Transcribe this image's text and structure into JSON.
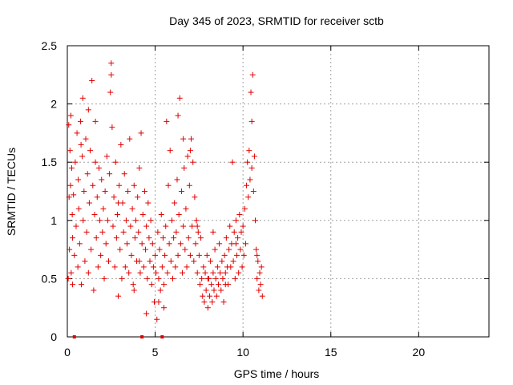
{
  "chart_data": {
    "type": "scatter",
    "title": "Day 345 of 2023, SRMTID for receiver sctb",
    "xlabel": "GPS time / hours",
    "ylabel": "SRMTID / TECUs",
    "xlim": [
      0,
      24
    ],
    "ylim": [
      0,
      2.5
    ],
    "x_ticks": [
      0,
      5,
      10,
      15,
      20
    ],
    "x_tick_labels": [
      "0",
      "5",
      "10",
      "15",
      "20"
    ],
    "y_ticks": [
      0,
      0.5,
      1,
      1.5,
      2,
      2.5
    ],
    "y_tick_labels": [
      "0",
      "0.5",
      "1",
      "1.5",
      "2",
      "2.5"
    ],
    "grid": true,
    "marker": "plus",
    "series_color": "#e00000",
    "zero_markers_x": [
      0.4,
      4.25,
      5.4
    ],
    "points": [
      [
        0.05,
        0.5
      ],
      [
        0.08,
        1.82
      ],
      [
        0.1,
        1.2
      ],
      [
        0.12,
        0.75
      ],
      [
        0.15,
        1.6
      ],
      [
        0.18,
        1.3
      ],
      [
        0.2,
        1.9
      ],
      [
        0.22,
        0.55
      ],
      [
        0.25,
        1.45
      ],
      [
        0.28,
        1.05
      ],
      [
        0.3,
        0.85
      ],
      [
        0.35,
        1.22
      ],
      [
        0.4,
        0.7
      ],
      [
        0.45,
        1.5
      ],
      [
        0.5,
        0.95
      ],
      [
        0.55,
        1.75
      ],
      [
        0.6,
        0.6
      ],
      [
        0.62,
        1.35
      ],
      [
        0.65,
        1.1
      ],
      [
        0.7,
        0.8
      ],
      [
        0.75,
        1.85
      ],
      [
        0.78,
        1.65
      ],
      [
        0.8,
        0.45
      ],
      [
        0.85,
        1.55
      ],
      [
        0.88,
        2.05
      ],
      [
        0.9,
        1.0
      ],
      [
        0.95,
        1.25
      ],
      [
        1.0,
        0.65
      ],
      [
        1.05,
        1.7
      ],
      [
        1.1,
        0.9
      ],
      [
        1.15,
        1.4
      ],
      [
        1.2,
        0.55
      ],
      [
        1.25,
        1.15
      ],
      [
        1.3,
        1.6
      ],
      [
        1.35,
        0.75
      ],
      [
        1.4,
        2.2
      ],
      [
        1.45,
        1.3
      ],
      [
        1.5,
        0.4
      ],
      [
        1.55,
        1.05
      ],
      [
        1.6,
        1.5
      ],
      [
        1.65,
        0.85
      ],
      [
        1.7,
        1.2
      ],
      [
        1.75,
        0.6
      ],
      [
        1.8,
        1.45
      ],
      [
        1.85,
        1.0
      ],
      [
        1.9,
        0.7
      ],
      [
        1.95,
        1.35
      ],
      [
        2.0,
        0.9
      ],
      [
        2.05,
        1.1
      ],
      [
        2.1,
        0.5
      ],
      [
        2.15,
        1.25
      ],
      [
        2.2,
        0.8
      ],
      [
        2.25,
        1.55
      ],
      [
        2.3,
        1.0
      ],
      [
        2.35,
        0.65
      ],
      [
        2.4,
        1.4
      ],
      [
        2.45,
        2.1
      ],
      [
        2.5,
        2.35
      ],
      [
        2.55,
        1.8
      ],
      [
        2.6,
        0.95
      ],
      [
        2.65,
        1.2
      ],
      [
        2.7,
        0.6
      ],
      [
        2.75,
        1.5
      ],
      [
        2.8,
        0.85
      ],
      [
        2.85,
        1.05
      ],
      [
        2.9,
        0.35
      ],
      [
        2.95,
        1.3
      ],
      [
        3.0,
        0.75
      ],
      [
        3.05,
        1.65
      ],
      [
        3.1,
        0.5
      ],
      [
        3.15,
        1.15
      ],
      [
        3.2,
        0.9
      ],
      [
        3.25,
        1.4
      ],
      [
        3.3,
        0.6
      ],
      [
        3.35,
        1.0
      ],
      [
        3.4,
        0.8
      ],
      [
        3.45,
        1.25
      ],
      [
        3.5,
        0.55
      ],
      [
        3.55,
        1.7
      ],
      [
        3.6,
        0.95
      ],
      [
        3.65,
        0.7
      ],
      [
        3.7,
        1.1
      ],
      [
        3.75,
        0.45
      ],
      [
        3.8,
        1.3
      ],
      [
        3.85,
        0.85
      ],
      [
        3.9,
        1.0
      ],
      [
        3.95,
        0.65
      ],
      [
        4.0,
        1.2
      ],
      [
        4.05,
        0.9
      ],
      [
        4.1,
        1.45
      ],
      [
        4.15,
        0.55
      ],
      [
        4.2,
        1.75
      ],
      [
        4.25,
        0.8
      ],
      [
        4.3,
        1.05
      ],
      [
        4.35,
        0.6
      ],
      [
        4.4,
        1.25
      ],
      [
        4.45,
        0.75
      ],
      [
        4.5,
        0.95
      ],
      [
        4.55,
        0.5
      ],
      [
        4.6,
        1.15
      ],
      [
        4.65,
        0.85
      ],
      [
        4.7,
        0.65
      ],
      [
        4.75,
        1.0
      ],
      [
        4.8,
        0.45
      ],
      [
        4.85,
        0.8
      ],
      [
        4.9,
        0.6
      ],
      [
        4.95,
        0.3
      ],
      [
        5.0,
        0.7
      ],
      [
        5.05,
        0.55
      ],
      [
        5.1,
        0.15
      ],
      [
        5.15,
        0.9
      ],
      [
        5.2,
        0.5
      ],
      [
        5.25,
        0.75
      ],
      [
        5.3,
        0.4
      ],
      [
        5.35,
        1.05
      ],
      [
        5.4,
        0.6
      ],
      [
        5.45,
        0.85
      ],
      [
        5.5,
        0.45
      ],
      [
        5.55,
        0.7
      ],
      [
        5.6,
        0.95
      ],
      [
        5.65,
        1.85
      ],
      [
        5.7,
        0.55
      ],
      [
        5.75,
        1.3
      ],
      [
        5.8,
        0.8
      ],
      [
        5.85,
        1.6
      ],
      [
        5.9,
        0.65
      ],
      [
        5.95,
        1.0
      ],
      [
        6.0,
        0.5
      ],
      [
        6.05,
        0.85
      ],
      [
        6.1,
        1.15
      ],
      [
        6.15,
        0.6
      ],
      [
        6.2,
        0.9
      ],
      [
        6.25,
        1.35
      ],
      [
        6.3,
        0.7
      ],
      [
        6.35,
        1.05
      ],
      [
        6.4,
        2.05
      ],
      [
        6.45,
        0.8
      ],
      [
        6.5,
        1.25
      ],
      [
        6.55,
        0.55
      ],
      [
        6.6,
        0.95
      ],
      [
        6.65,
        1.45
      ],
      [
        6.7,
        0.75
      ],
      [
        6.75,
        1.1
      ],
      [
        6.8,
        0.6
      ],
      [
        6.85,
        1.55
      ],
      [
        6.9,
        0.85
      ],
      [
        6.95,
        1.3
      ],
      [
        7.0,
        0.7
      ],
      [
        7.05,
        1.7
      ],
      [
        7.1,
        0.95
      ],
      [
        7.15,
        1.5
      ],
      [
        7.2,
        0.65
      ],
      [
        7.25,
        1.2
      ],
      [
        7.3,
        0.8
      ],
      [
        7.35,
        1.0
      ],
      [
        7.4,
        0.55
      ],
      [
        7.45,
        0.9
      ],
      [
        7.5,
        0.7
      ],
      [
        7.55,
        0.45
      ],
      [
        7.6,
        0.85
      ],
      [
        7.65,
        0.5
      ],
      [
        7.7,
        0.35
      ],
      [
        7.75,
        0.6
      ],
      [
        7.8,
        0.3
      ],
      [
        7.85,
        0.55
      ],
      [
        7.9,
        0.4
      ],
      [
        7.95,
        0.7
      ],
      [
        8.0,
        0.25
      ],
      [
        8.05,
        0.5
      ],
      [
        8.1,
        0.35
      ],
      [
        8.15,
        0.65
      ],
      [
        8.2,
        0.45
      ],
      [
        8.25,
        0.3
      ],
      [
        8.3,
        0.55
      ],
      [
        8.35,
        0.4
      ],
      [
        8.4,
        0.75
      ],
      [
        8.45,
        0.5
      ],
      [
        8.5,
        0.35
      ],
      [
        8.55,
        0.6
      ],
      [
        8.6,
        0.45
      ],
      [
        8.65,
        0.8
      ],
      [
        8.7,
        0.55
      ],
      [
        8.75,
        0.4
      ],
      [
        8.8,
        0.65
      ],
      [
        8.85,
        0.5
      ],
      [
        8.9,
        0.3
      ],
      [
        8.95,
        0.7
      ],
      [
        9.0,
        0.55
      ],
      [
        9.05,
        0.85
      ],
      [
        9.1,
        0.6
      ],
      [
        9.15,
        0.45
      ],
      [
        9.2,
        0.75
      ],
      [
        9.25,
        0.95
      ],
      [
        9.3,
        0.6
      ],
      [
        9.35,
        0.8
      ],
      [
        9.4,
        1.5
      ],
      [
        9.45,
        0.65
      ],
      [
        9.5,
        0.9
      ],
      [
        9.55,
        0.5
      ],
      [
        9.6,
        1.0
      ],
      [
        9.65,
        0.7
      ],
      [
        9.7,
        0.85
      ],
      [
        9.75,
        0.55
      ],
      [
        9.8,
        1.05
      ],
      [
        9.85,
        0.75
      ],
      [
        9.9,
        0.9
      ],
      [
        9.95,
        0.6
      ],
      [
        10.0,
        0.95
      ],
      [
        10.05,
        0.7
      ],
      [
        10.1,
        1.1
      ],
      [
        10.15,
        0.8
      ],
      [
        10.2,
        1.3
      ],
      [
        10.25,
        1.5
      ],
      [
        10.3,
        1.2
      ],
      [
        10.35,
        1.6
      ],
      [
        10.4,
        1.35
      ],
      [
        10.45,
        2.1
      ],
      [
        10.5,
        1.45
      ],
      [
        10.55,
        2.25
      ],
      [
        10.6,
        1.25
      ],
      [
        10.65,
        1.55
      ],
      [
        10.7,
        1.0
      ],
      [
        10.75,
        0.75
      ],
      [
        10.8,
        0.5
      ],
      [
        10.85,
        0.65
      ],
      [
        10.9,
        0.4
      ],
      [
        10.95,
        0.55
      ],
      [
        11.0,
        0.45
      ],
      [
        11.05,
        0.6
      ],
      [
        11.1,
        0.35
      ],
      [
        0.3,
        0.45
      ],
      [
        1.2,
        1.95
      ],
      [
        2.5,
        2.25
      ],
      [
        3.8,
        0.4
      ],
      [
        4.5,
        0.2
      ],
      [
        5.2,
        0.3
      ],
      [
        6.3,
        1.9
      ],
      [
        7.0,
        1.6
      ],
      [
        8.0,
        0.5
      ],
      [
        9.0,
        0.45
      ],
      [
        10.5,
        1.85
      ],
      [
        10.8,
        0.7
      ],
      [
        1.6,
        1.85
      ],
      [
        2.9,
        1.15
      ],
      [
        4.1,
        0.65
      ],
      [
        5.5,
        0.25
      ],
      [
        6.6,
        1.7
      ],
      [
        7.4,
        0.95
      ],
      [
        8.3,
        0.9
      ],
      [
        9.6,
        0.8
      ]
    ]
  }
}
